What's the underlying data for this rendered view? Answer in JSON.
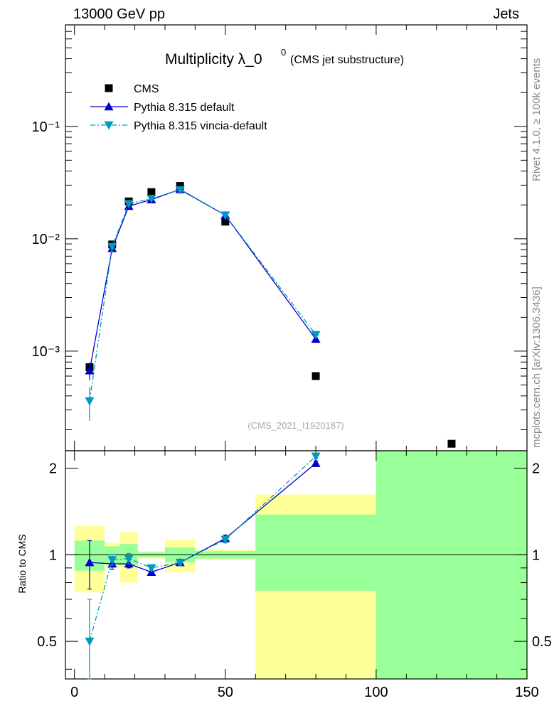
{
  "header": {
    "left": "13000 GeV pp",
    "right": "Jets"
  },
  "side_labels": {
    "rivet": "Rivet 4.1.0, ≥ 100k events",
    "mcplots": "mcplots.cern.ch [arXiv:1306.3436]"
  },
  "chart_data": {
    "type": "scatter",
    "title_main": "Multiplicity λ_0",
    "title_sup": "0",
    "title_sub": "(CMS jet substructure)",
    "analysis_id": "(CMS_2021_I1920187)",
    "xlabel": "",
    "ylabel_top": "",
    "ylabel_ratio": "Ratio to CMS",
    "xlim": [
      -3,
      150
    ],
    "ylim_top": [
      0.00013,
      0.8
    ],
    "ylog": true,
    "ylim_ratio": [
      0.37,
      2.3
    ],
    "x_ticks": [
      "0",
      "50",
      "100",
      "150"
    ],
    "y_ticks_top": [
      "10⁻³",
      "10⁻²",
      "10⁻¹"
    ],
    "y_ticks_ratio": [
      "0.5",
      "1",
      "2"
    ],
    "legend_position": "top-left",
    "bins": [
      {
        "lo": 0,
        "hi": 10,
        "center": 5
      },
      {
        "lo": 10,
        "hi": 15,
        "center": 12.5
      },
      {
        "lo": 15,
        "hi": 21,
        "center": 18
      },
      {
        "lo": 21,
        "hi": 30,
        "center": 25.5
      },
      {
        "lo": 30,
        "hi": 40,
        "center": 35
      },
      {
        "lo": 40,
        "hi": 60,
        "center": 50
      },
      {
        "lo": 60,
        "hi": 100,
        "center": 80
      },
      {
        "lo": 100,
        "hi": 150,
        "center": 125
      }
    ],
    "series": [
      {
        "name": "CMS",
        "color": "#000000",
        "marker": "square",
        "x": [
          5,
          12.5,
          18,
          25.5,
          35,
          50,
          80,
          125
        ],
        "y": [
          0.00072,
          0.0089,
          0.0215,
          0.026,
          0.0295,
          0.0142,
          0.0006,
          0.00015
        ]
      },
      {
        "name": "Pythia 8.315 default",
        "color": "#0000cc",
        "marker": "triangle-up",
        "line": "solid",
        "x": [
          5,
          12.5,
          18,
          25.5,
          35,
          50,
          80
        ],
        "y": [
          0.00067,
          0.0082,
          0.0195,
          0.0223,
          0.0275,
          0.0162,
          0.00128
        ],
        "yerr": [
          0.00012,
          0.0003,
          0.0005,
          0.0005,
          0.0006,
          0.0004,
          4e-05
        ],
        "ratio": [
          0.94,
          0.93,
          0.93,
          0.87,
          0.94,
          1.14,
          2.08
        ],
        "ratio_err": [
          0.18,
          0.04,
          0.03,
          0.02,
          0.02,
          0.03,
          0.04
        ]
      },
      {
        "name": "Pythia 8.315 vincia-default",
        "color": "#0099bb",
        "marker": "triangle-down",
        "line": "dashdot",
        "x": [
          5,
          12.5,
          18,
          25.5,
          35,
          50,
          80
        ],
        "y": [
          0.00036,
          0.0085,
          0.0205,
          0.0228,
          0.0272,
          0.0162,
          0.0014
        ],
        "yerr": [
          0.00012,
          0.0003,
          0.0005,
          0.0005,
          0.0006,
          0.0004,
          4e-05
        ],
        "ratio": [
          0.5,
          0.96,
          0.97,
          0.9,
          0.94,
          1.13,
          2.2
        ],
        "ratio_err": [
          0.2,
          0.04,
          0.04,
          0.02,
          0.02,
          0.03,
          0.04
        ]
      }
    ],
    "uncertainty_bands": {
      "inner_color": "#99ff99",
      "outer_color": "#ffff99",
      "inner": [
        [
          0.88,
          1.12
        ],
        [
          0.93,
          1.07
        ],
        [
          0.92,
          1.09
        ],
        [
          0.98,
          1.02
        ],
        [
          0.94,
          1.06
        ],
        [
          0.97,
          1.03
        ],
        [
          0.75,
          1.38
        ],
        [
          0.37,
          2.3
        ]
      ],
      "outer": [
        [
          0.74,
          1.26
        ],
        [
          0.9,
          1.1
        ],
        [
          0.8,
          1.2
        ],
        [
          0.97,
          1.03
        ],
        [
          0.87,
          1.13
        ],
        [
          0.96,
          1.04
        ],
        [
          0.37,
          1.62
        ],
        [
          0.37,
          2.3
        ]
      ]
    }
  }
}
